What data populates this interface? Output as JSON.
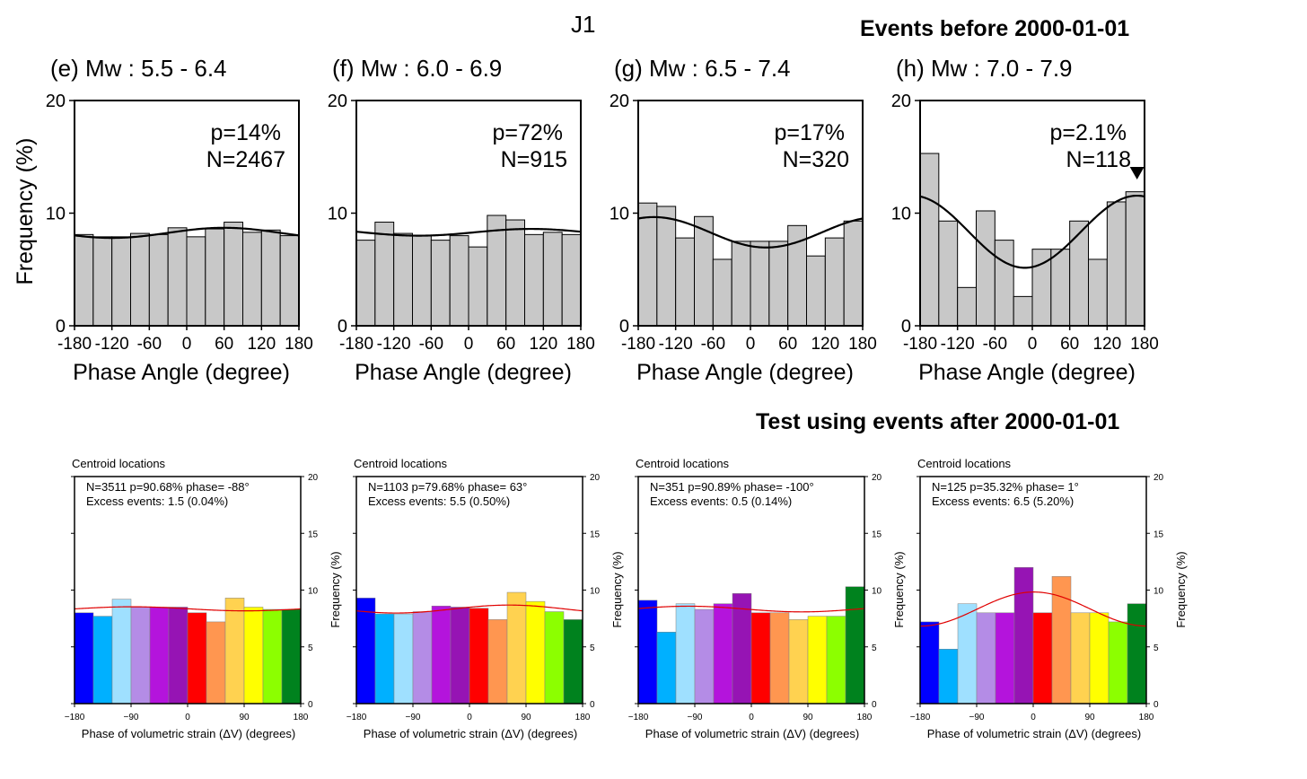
{
  "header": {
    "supertitle": "J1",
    "top_heading": "Events before 2000-01-01",
    "bottom_heading": "Test using events after 2000-01-01"
  },
  "top_axis": {
    "ylabel": "Frequency (%)",
    "xlabel": "Phase Angle (degree)",
    "yticks": [
      "0",
      "10",
      "20"
    ],
    "xticks": [
      "-180",
      "-120",
      "-60",
      "0",
      "60",
      "120",
      "180"
    ],
    "ylim": [
      0,
      20
    ],
    "xlim": [
      -180,
      180
    ]
  },
  "bottom_axis": {
    "inset_title": "Centroid locations",
    "ylabel": "Frequency (%)",
    "xlabel": "Phase of volumetric strain (ΔV) (degrees)",
    "yticks": [
      "0",
      "5",
      "10",
      "15",
      "20"
    ],
    "xticks": [
      "−180",
      "−90",
      "0",
      "90",
      "180"
    ],
    "ylim": [
      0,
      20
    ],
    "xlim": [
      -180,
      180
    ]
  },
  "colors": {
    "top_bar": "#c8c8c8",
    "fit_top": "#000000",
    "fit_bottom": "#e00000",
    "phase_bins": [
      "#0000ff",
      "#00b0ff",
      "#9fe0ff",
      "#b48ce6",
      "#b414dc",
      "#9614b4",
      "#ff0000",
      "#ff9650",
      "#ffd250",
      "#ffff00",
      "#8cff00",
      "#00821e"
    ]
  },
  "chart_data": [
    {
      "type": "bar",
      "panel": "top",
      "title": "(e) Mw : 5.5 - 6.4",
      "p_text": "p=14%",
      "n_text": "N=2467",
      "bin_edges": [
        -180,
        -150,
        -120,
        -90,
        -60,
        -30,
        0,
        30,
        60,
        90,
        120,
        150,
        180
      ],
      "values": [
        8.1,
        7.9,
        7.9,
        8.2,
        8.1,
        8.7,
        7.9,
        8.6,
        9.2,
        8.3,
        8.5,
        8.0
      ],
      "fit": {
        "mean": 8.25,
        "amplitude": 0.45,
        "phase": 60
      }
    },
    {
      "type": "bar",
      "panel": "top",
      "title": "(f) Mw : 6.0 - 6.9",
      "p_text": "p=72%",
      "n_text": "N=915",
      "bin_edges": [
        -180,
        -150,
        -120,
        -90,
        -60,
        -30,
        0,
        30,
        60,
        90,
        120,
        150,
        180
      ],
      "values": [
        7.6,
        9.2,
        8.2,
        8.0,
        7.6,
        8.0,
        7.0,
        9.8,
        9.4,
        8.1,
        8.3,
        8.1
      ],
      "fit": {
        "mean": 8.3,
        "amplitude": 0.3,
        "phase": 100
      }
    },
    {
      "type": "bar",
      "panel": "top",
      "title": "(g) Mw : 6.5 - 7.4",
      "p_text": "p=17%",
      "n_text": "N=320",
      "bin_edges": [
        -180,
        -150,
        -120,
        -90,
        -60,
        -30,
        0,
        30,
        60,
        90,
        120,
        150,
        180
      ],
      "values": [
        10.9,
        10.6,
        7.8,
        9.7,
        5.9,
        7.5,
        7.5,
        7.5,
        8.9,
        6.2,
        7.8,
        9.3
      ],
      "fit": {
        "mean": 8.3,
        "amplitude": 1.35,
        "phase": -155
      }
    },
    {
      "type": "bar",
      "panel": "top",
      "title": "(h) Mw : 7.0 - 7.9",
      "p_text": "p=2.1%",
      "n_text": "N=118",
      "bin_edges": [
        -180,
        -150,
        -120,
        -90,
        -60,
        -30,
        0,
        30,
        60,
        90,
        120,
        150,
        180
      ],
      "values": [
        15.3,
        9.3,
        3.4,
        10.2,
        7.6,
        2.6,
        6.8,
        6.8,
        9.3,
        5.9,
        11.0,
        11.9
      ],
      "fit": {
        "mean": 8.35,
        "amplitude": 3.2,
        "phase": 168
      },
      "marker_phase": 168
    },
    {
      "type": "bar",
      "panel": "bottom",
      "stats_text": "N=3511   p=90.68%   phase= -88°",
      "excess_text": "Excess events: 1.5 (0.04%)",
      "bin_edges": [
        -180,
        -150,
        -120,
        -90,
        -60,
        -30,
        0,
        30,
        60,
        90,
        120,
        150,
        180
      ],
      "values": [
        8.0,
        7.7,
        9.2,
        8.5,
        8.5,
        8.5,
        8.0,
        7.2,
        9.3,
        8.5,
        8.3,
        8.3
      ],
      "fit": {
        "mean": 8.35,
        "amplitude": 0.18,
        "phase": -88
      }
    },
    {
      "type": "bar",
      "panel": "bottom",
      "stats_text": "N=1103   p=79.68%   phase= 63°",
      "excess_text": "Excess events: 5.5 (0.50%)",
      "bin_edges": [
        -180,
        -150,
        -120,
        -90,
        -60,
        -30,
        0,
        30,
        60,
        90,
        120,
        150,
        180
      ],
      "values": [
        9.3,
        7.9,
        7.9,
        8.1,
        8.6,
        8.5,
        8.4,
        7.4,
        9.8,
        9.0,
        8.1,
        7.4
      ],
      "fit": {
        "mean": 8.33,
        "amplitude": 0.35,
        "phase": 63
      }
    },
    {
      "type": "bar",
      "panel": "bottom",
      "stats_text": "N=351   p=90.89%   phase= -100°",
      "excess_text": "Excess events: 0.5 (0.14%)",
      "bin_edges": [
        -180,
        -150,
        -120,
        -90,
        -60,
        -30,
        0,
        30,
        60,
        90,
        120,
        150,
        180
      ],
      "values": [
        9.1,
        6.3,
        8.8,
        8.3,
        8.8,
        9.7,
        8.0,
        8.0,
        7.4,
        7.7,
        7.7,
        10.3
      ],
      "fit": {
        "mean": 8.33,
        "amplitude": 0.25,
        "phase": -100
      }
    },
    {
      "type": "bar",
      "panel": "bottom",
      "stats_text": "N=125   p=35.32%   phase= 1°",
      "excess_text": "Excess events: 6.5 (5.20%)",
      "bin_edges": [
        -180,
        -150,
        -120,
        -90,
        -60,
        -30,
        0,
        30,
        60,
        90,
        120,
        150,
        180
      ],
      "values": [
        7.2,
        4.8,
        8.8,
        8.0,
        8.0,
        12.0,
        8.0,
        11.2,
        8.0,
        8.0,
        7.2,
        8.8
      ],
      "fit": {
        "mean": 8.33,
        "amplitude": 1.5,
        "phase": 1
      }
    }
  ]
}
